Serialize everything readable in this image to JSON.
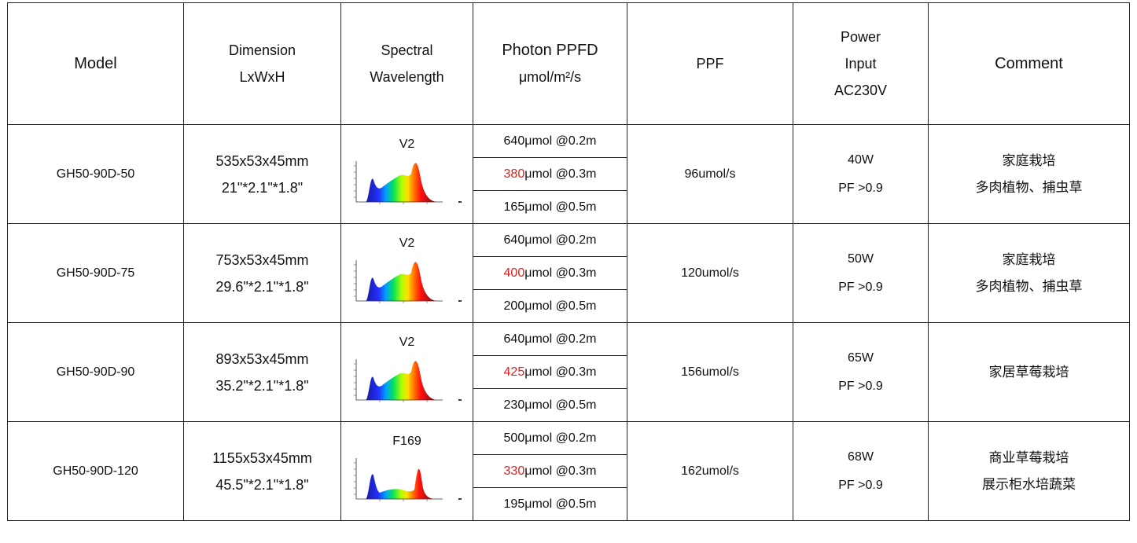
{
  "headers": {
    "model": "Model",
    "dimension": [
      "Dimension",
      "LxWxH"
    ],
    "spectral": [
      "Spectral",
      "Wavelength"
    ],
    "ppfd": [
      "Photon PPFD",
      "μmol/m²/s"
    ],
    "ppf": "PPF",
    "power": [
      "Power",
      "Input",
      "AC230V"
    ],
    "comment": "Comment"
  },
  "rows": [
    {
      "model": "GH50-90D-50",
      "dimension": [
        "535x53x45mm",
        "21\"*2.1\"*1.8\""
      ],
      "spectrum_label": "V2",
      "spectrum_icon": "spectrum-graph-v2",
      "ppfd": [
        {
          "value": "640",
          "suffix": "μmol @0.2m",
          "highlight": false
        },
        {
          "value": "380",
          "suffix": "μmol @0.3m",
          "highlight": true
        },
        {
          "value": "165",
          "suffix": "μmol @0.5m",
          "highlight": false
        }
      ],
      "ppf": "96umol/s",
      "power": [
        "40W",
        "PF >0.9"
      ],
      "comment": [
        "家庭栽培",
        "多肉植物、捕虫草"
      ]
    },
    {
      "model": "GH50-90D-75",
      "dimension": [
        "753x53x45mm",
        "29.6\"*2.1\"*1.8\""
      ],
      "spectrum_label": "V2",
      "spectrum_icon": "spectrum-graph-v2",
      "ppfd": [
        {
          "value": "640",
          "suffix": "μmol @0.2m",
          "highlight": false
        },
        {
          "value": "400",
          "suffix": "μmol @0.3m",
          "highlight": true
        },
        {
          "value": "200",
          "suffix": "μmol @0.5m",
          "highlight": false
        }
      ],
      "ppf": "120umol/s",
      "power": [
        "50W",
        "PF >0.9"
      ],
      "comment": [
        "家庭栽培",
        "多肉植物、捕虫草"
      ]
    },
    {
      "model": "GH50-90D-90",
      "dimension": [
        "893x53x45mm",
        "35.2\"*2.1\"*1.8\""
      ],
      "spectrum_label": "V2",
      "spectrum_icon": "spectrum-graph-v2",
      "ppfd": [
        {
          "value": "640",
          "suffix": "μmol @0.2m",
          "highlight": false
        },
        {
          "value": "425",
          "suffix": "μmol @0.3m",
          "highlight": true
        },
        {
          "value": "230",
          "suffix": "μmol @0.5m",
          "highlight": false
        }
      ],
      "ppf": "156umol/s",
      "power": [
        "65W",
        "PF >0.9"
      ],
      "comment": [
        "家居草莓栽培"
      ]
    },
    {
      "model": "GH50-90D-120",
      "dimension": [
        "1155x53x45mm",
        "45.5\"*2.1\"*1.8\""
      ],
      "spectrum_label": "F169",
      "spectrum_icon": "spectrum-graph-f169",
      "ppfd": [
        {
          "value": "500",
          "suffix": "μmol @0.2m",
          "highlight": false
        },
        {
          "value": "330",
          "suffix": "μmol @0.3m",
          "highlight": true
        },
        {
          "value": "195",
          "suffix": "μmol @0.5m",
          "highlight": false
        }
      ],
      "ppf": "162umol/s",
      "power": [
        "68W",
        "PF >0.9"
      ],
      "comment": [
        "商业草莓栽培",
        "展示柜水培蔬菜"
      ]
    }
  ],
  "colors": {
    "highlight": "#e0201c",
    "border": "#222222"
  }
}
